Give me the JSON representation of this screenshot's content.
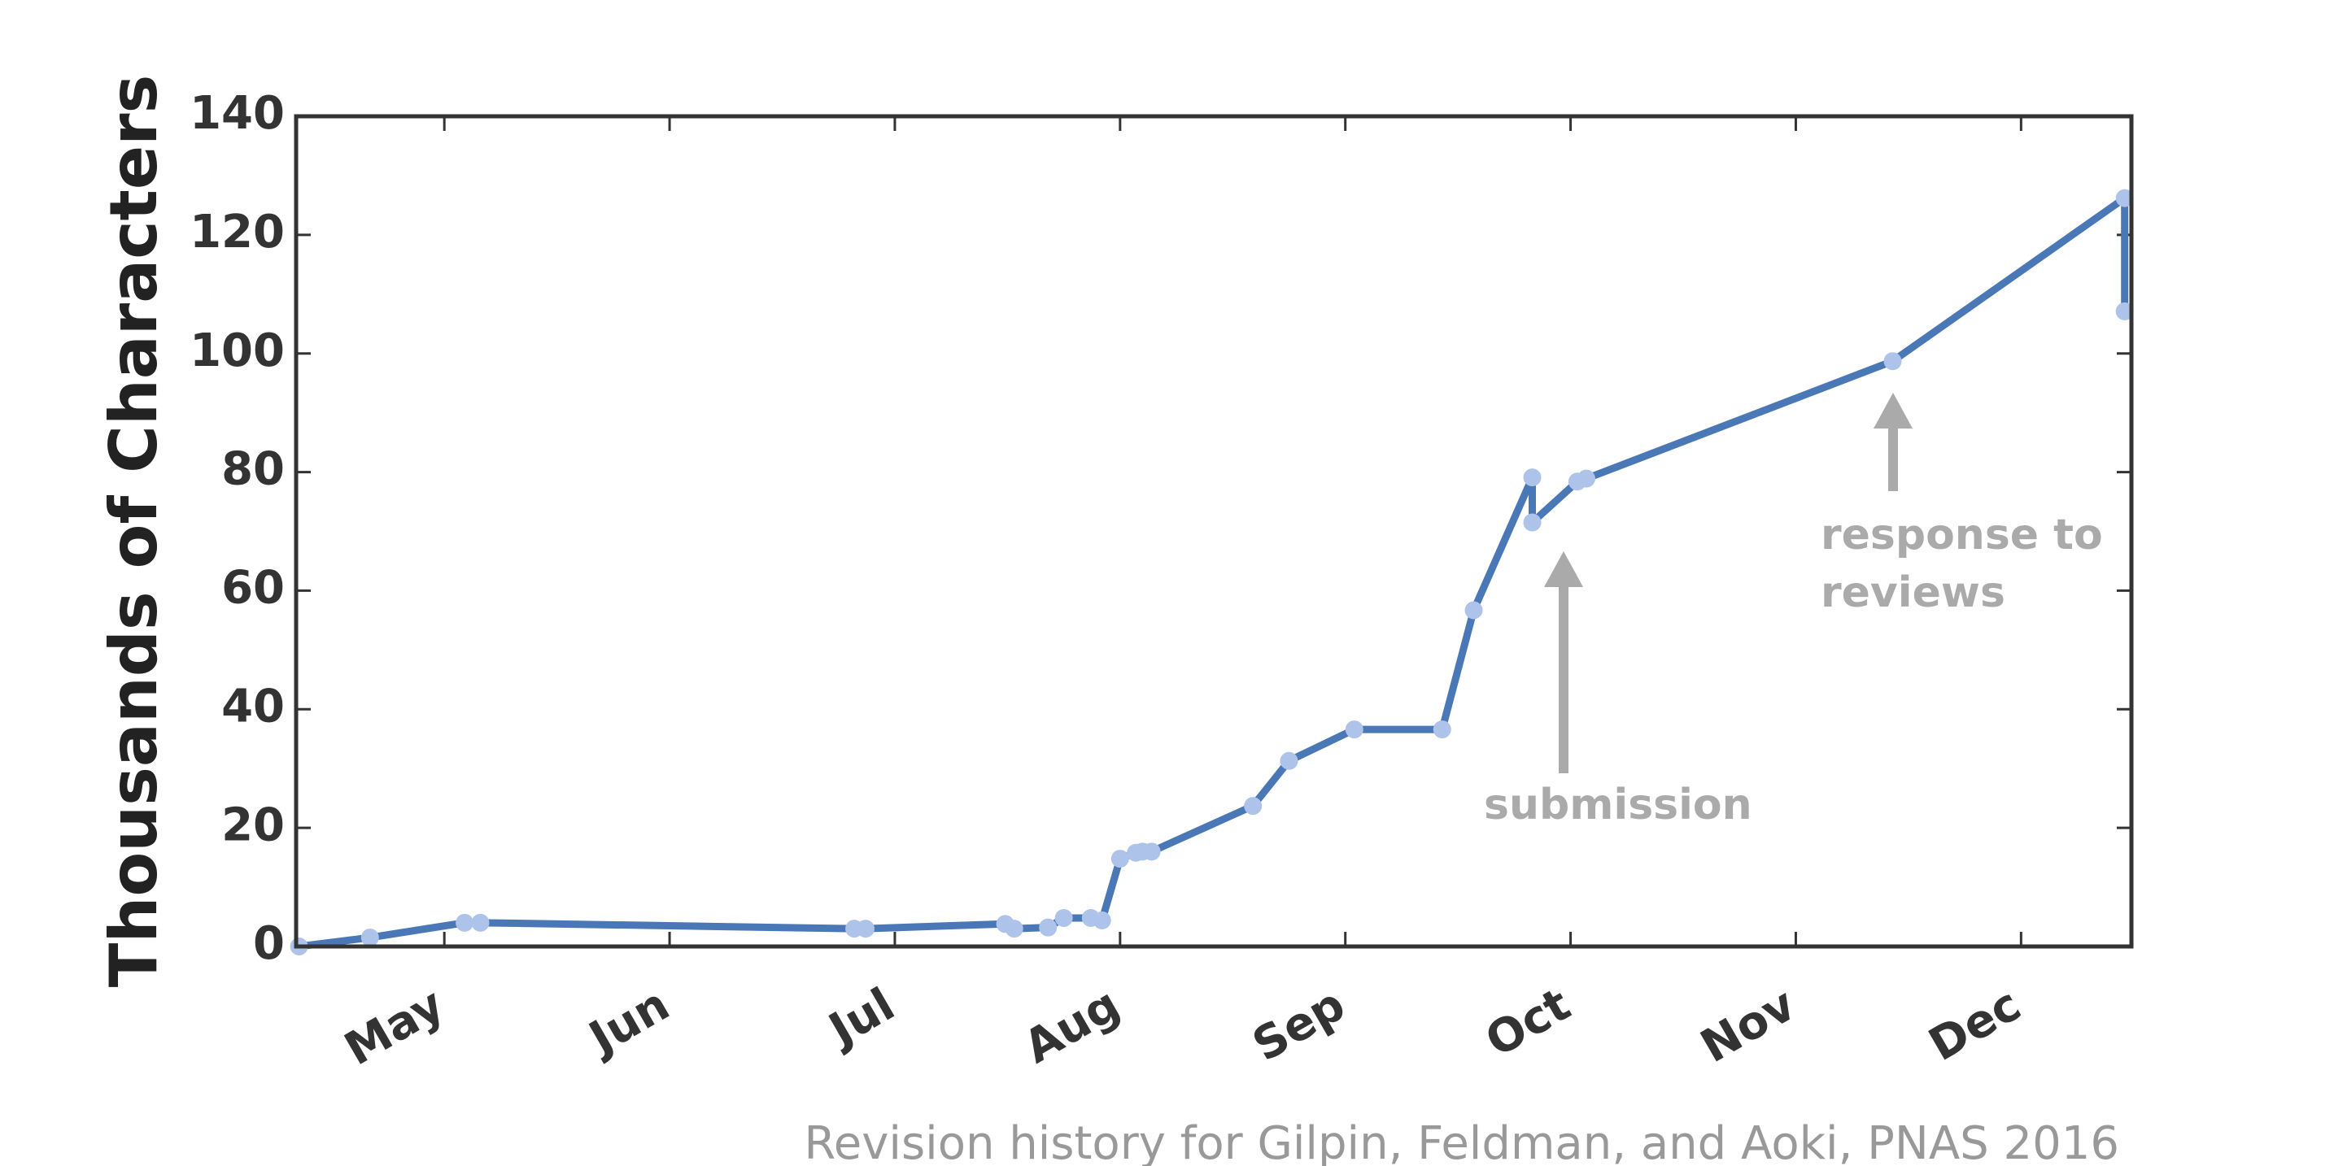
{
  "chart_data": {
    "type": "line",
    "ylabel": "Thousands of Characters",
    "caption": "Revision history for Gilpin, Feldman, and Aoki, PNAS 2016",
    "x": [
      4.355,
      4.67,
      5.09,
      5.16,
      6.82,
      6.87,
      7.49,
      7.53,
      7.68,
      7.75,
      7.87,
      7.92,
      8.0,
      8.07,
      8.1,
      8.14,
      8.59,
      8.75,
      9.04,
      9.43,
      9.57,
      9.83,
      9.83,
      10.03,
      10.07,
      11.43,
      12.46,
      12.46
    ],
    "values": [
      0,
      1.5,
      4,
      4,
      3,
      3,
      3.8,
      3,
      3.2,
      4.8,
      4.8,
      4.4,
      14.8,
      15.8,
      16,
      16,
      23.7,
      31.3,
      36.6,
      36.6,
      56.7,
      79.1,
      71.5,
      78.4,
      78.9,
      98.7,
      126.2,
      107.1
    ],
    "color": "#4a78b6",
    "marker_color": "#aec3ea",
    "xlim": [
      4.342,
      12.49
    ],
    "xticks": [
      {
        "value": 5,
        "label": "May"
      },
      {
        "value": 6,
        "label": "Jun"
      },
      {
        "value": 7,
        "label": "Jul"
      },
      {
        "value": 8,
        "label": "Aug"
      },
      {
        "value": 9,
        "label": "Sep"
      },
      {
        "value": 10,
        "label": "Oct"
      },
      {
        "value": 11,
        "label": "Nov"
      },
      {
        "value": 12,
        "label": "Dec"
      }
    ],
    "ylim": [
      0,
      140
    ],
    "yticks": [
      0,
      20,
      40,
      60,
      80,
      100,
      120,
      140
    ],
    "annotations": [
      {
        "lines": [
          "submission"
        ]
      },
      {
        "lines": [
          "response to",
          "reviews"
        ]
      }
    ]
  }
}
